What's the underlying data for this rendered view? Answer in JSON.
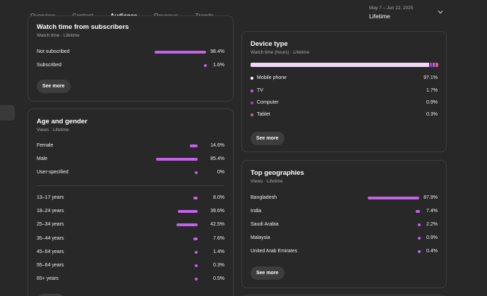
{
  "tabs": [
    {
      "label": "Overview",
      "active": false
    },
    {
      "label": "Content",
      "active": false
    },
    {
      "label": "Audience",
      "active": true
    },
    {
      "label": "Revenue",
      "active": false
    },
    {
      "label": "Trends",
      "active": false
    }
  ],
  "date_range": {
    "dates": "May 7 – Jun 22, 2025",
    "period": "Lifetime"
  },
  "colors": {
    "accent": "#c462e8",
    "bar_track": "#f1d8f7"
  },
  "subscribers": {
    "title": "Watch time from subscribers",
    "subtitle": "Watch time · Lifetime",
    "rows": [
      {
        "label": "Not subscribed",
        "value": "98.4%",
        "pct": 98.4
      },
      {
        "label": "Subscribed",
        "value": "1.6%",
        "pct": 1.6
      }
    ],
    "see_more": "See more"
  },
  "age_gender": {
    "title": "Age and gender",
    "subtitle": "Views · Lifetime",
    "gender": [
      {
        "label": "Female",
        "value": "14.6%",
        "pct": 14.6
      },
      {
        "label": "Male",
        "value": "85.4%",
        "pct": 85.4
      },
      {
        "label": "User-specified",
        "value": "0%",
        "pct": 0
      }
    ],
    "age": [
      {
        "label": "13–17 years",
        "value": "8.0%",
        "pct": 8.0
      },
      {
        "label": "18–24 years",
        "value": "39.6%",
        "pct": 39.6
      },
      {
        "label": "25–34 years",
        "value": "42.5%",
        "pct": 42.5
      },
      {
        "label": "35–44 years",
        "value": "7.6%",
        "pct": 7.6
      },
      {
        "label": "45–54 years",
        "value": "1.4%",
        "pct": 1.4
      },
      {
        "label": "55–64 years",
        "value": "0.3%",
        "pct": 0.3
      },
      {
        "label": "65+ years",
        "value": "0.5%",
        "pct": 0.5
      }
    ]
  },
  "device": {
    "title": "Device type",
    "subtitle": "Watch time (hours) · Lifetime",
    "rows": [
      {
        "label": "Mobile phone",
        "value": "97.1%",
        "pct": 97.1,
        "color": "#ffffff"
      },
      {
        "label": "TV",
        "value": "1.7%",
        "pct": 1.7,
        "color": "#c462e8"
      },
      {
        "label": "Computer",
        "value": "0.9%",
        "pct": 0.9,
        "color": "#8e4ad6"
      },
      {
        "label": "Tablet",
        "value": "0.3%",
        "pct": 0.3,
        "color": "#e45b8f"
      }
    ],
    "see_more": "See more"
  },
  "geo": {
    "title": "Top geographies",
    "subtitle": "Views · Lifetime",
    "rows": [
      {
        "label": "Bangladesh",
        "value": "87.9%",
        "pct": 87.9
      },
      {
        "label": "India",
        "value": "7.4%",
        "pct": 7.4
      },
      {
        "label": "Saudi Arabia",
        "value": "2.2%",
        "pct": 2.2
      },
      {
        "label": "Malaysia",
        "value": "0.9%",
        "pct": 0.9
      },
      {
        "label": "United Arab Emirates",
        "value": "0.4%",
        "pct": 0.4
      }
    ],
    "see_more": "See more"
  }
}
